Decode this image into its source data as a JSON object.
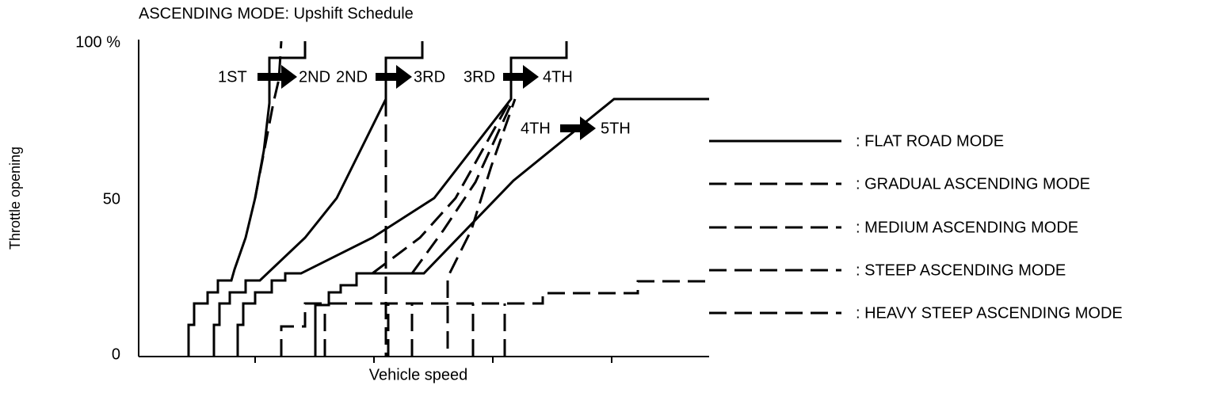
{
  "header": {
    "title": "ASCENDING MODE: Upshift Schedule"
  },
  "axes": {
    "y_label": "Throttle opening",
    "x_label": "Vehicle speed",
    "y_ticks": [
      "100 %",
      "50",
      "0"
    ]
  },
  "shift_labels": [
    {
      "from": "1ST",
      "to": "2ND"
    },
    {
      "from": "2ND",
      "to": "3RD"
    },
    {
      "from": "3RD",
      "to": "4TH"
    },
    {
      "from": "4TH",
      "to": "5TH"
    }
  ],
  "legend": [
    ": FLAT ROAD MODE",
    ": GRADUAL ASCENDING MODE",
    ": MEDIUM ASCENDING MODE",
    ": STEEP ASCENDING MODE",
    ": HEAVY STEEP ASCENDING MODE"
  ]
}
